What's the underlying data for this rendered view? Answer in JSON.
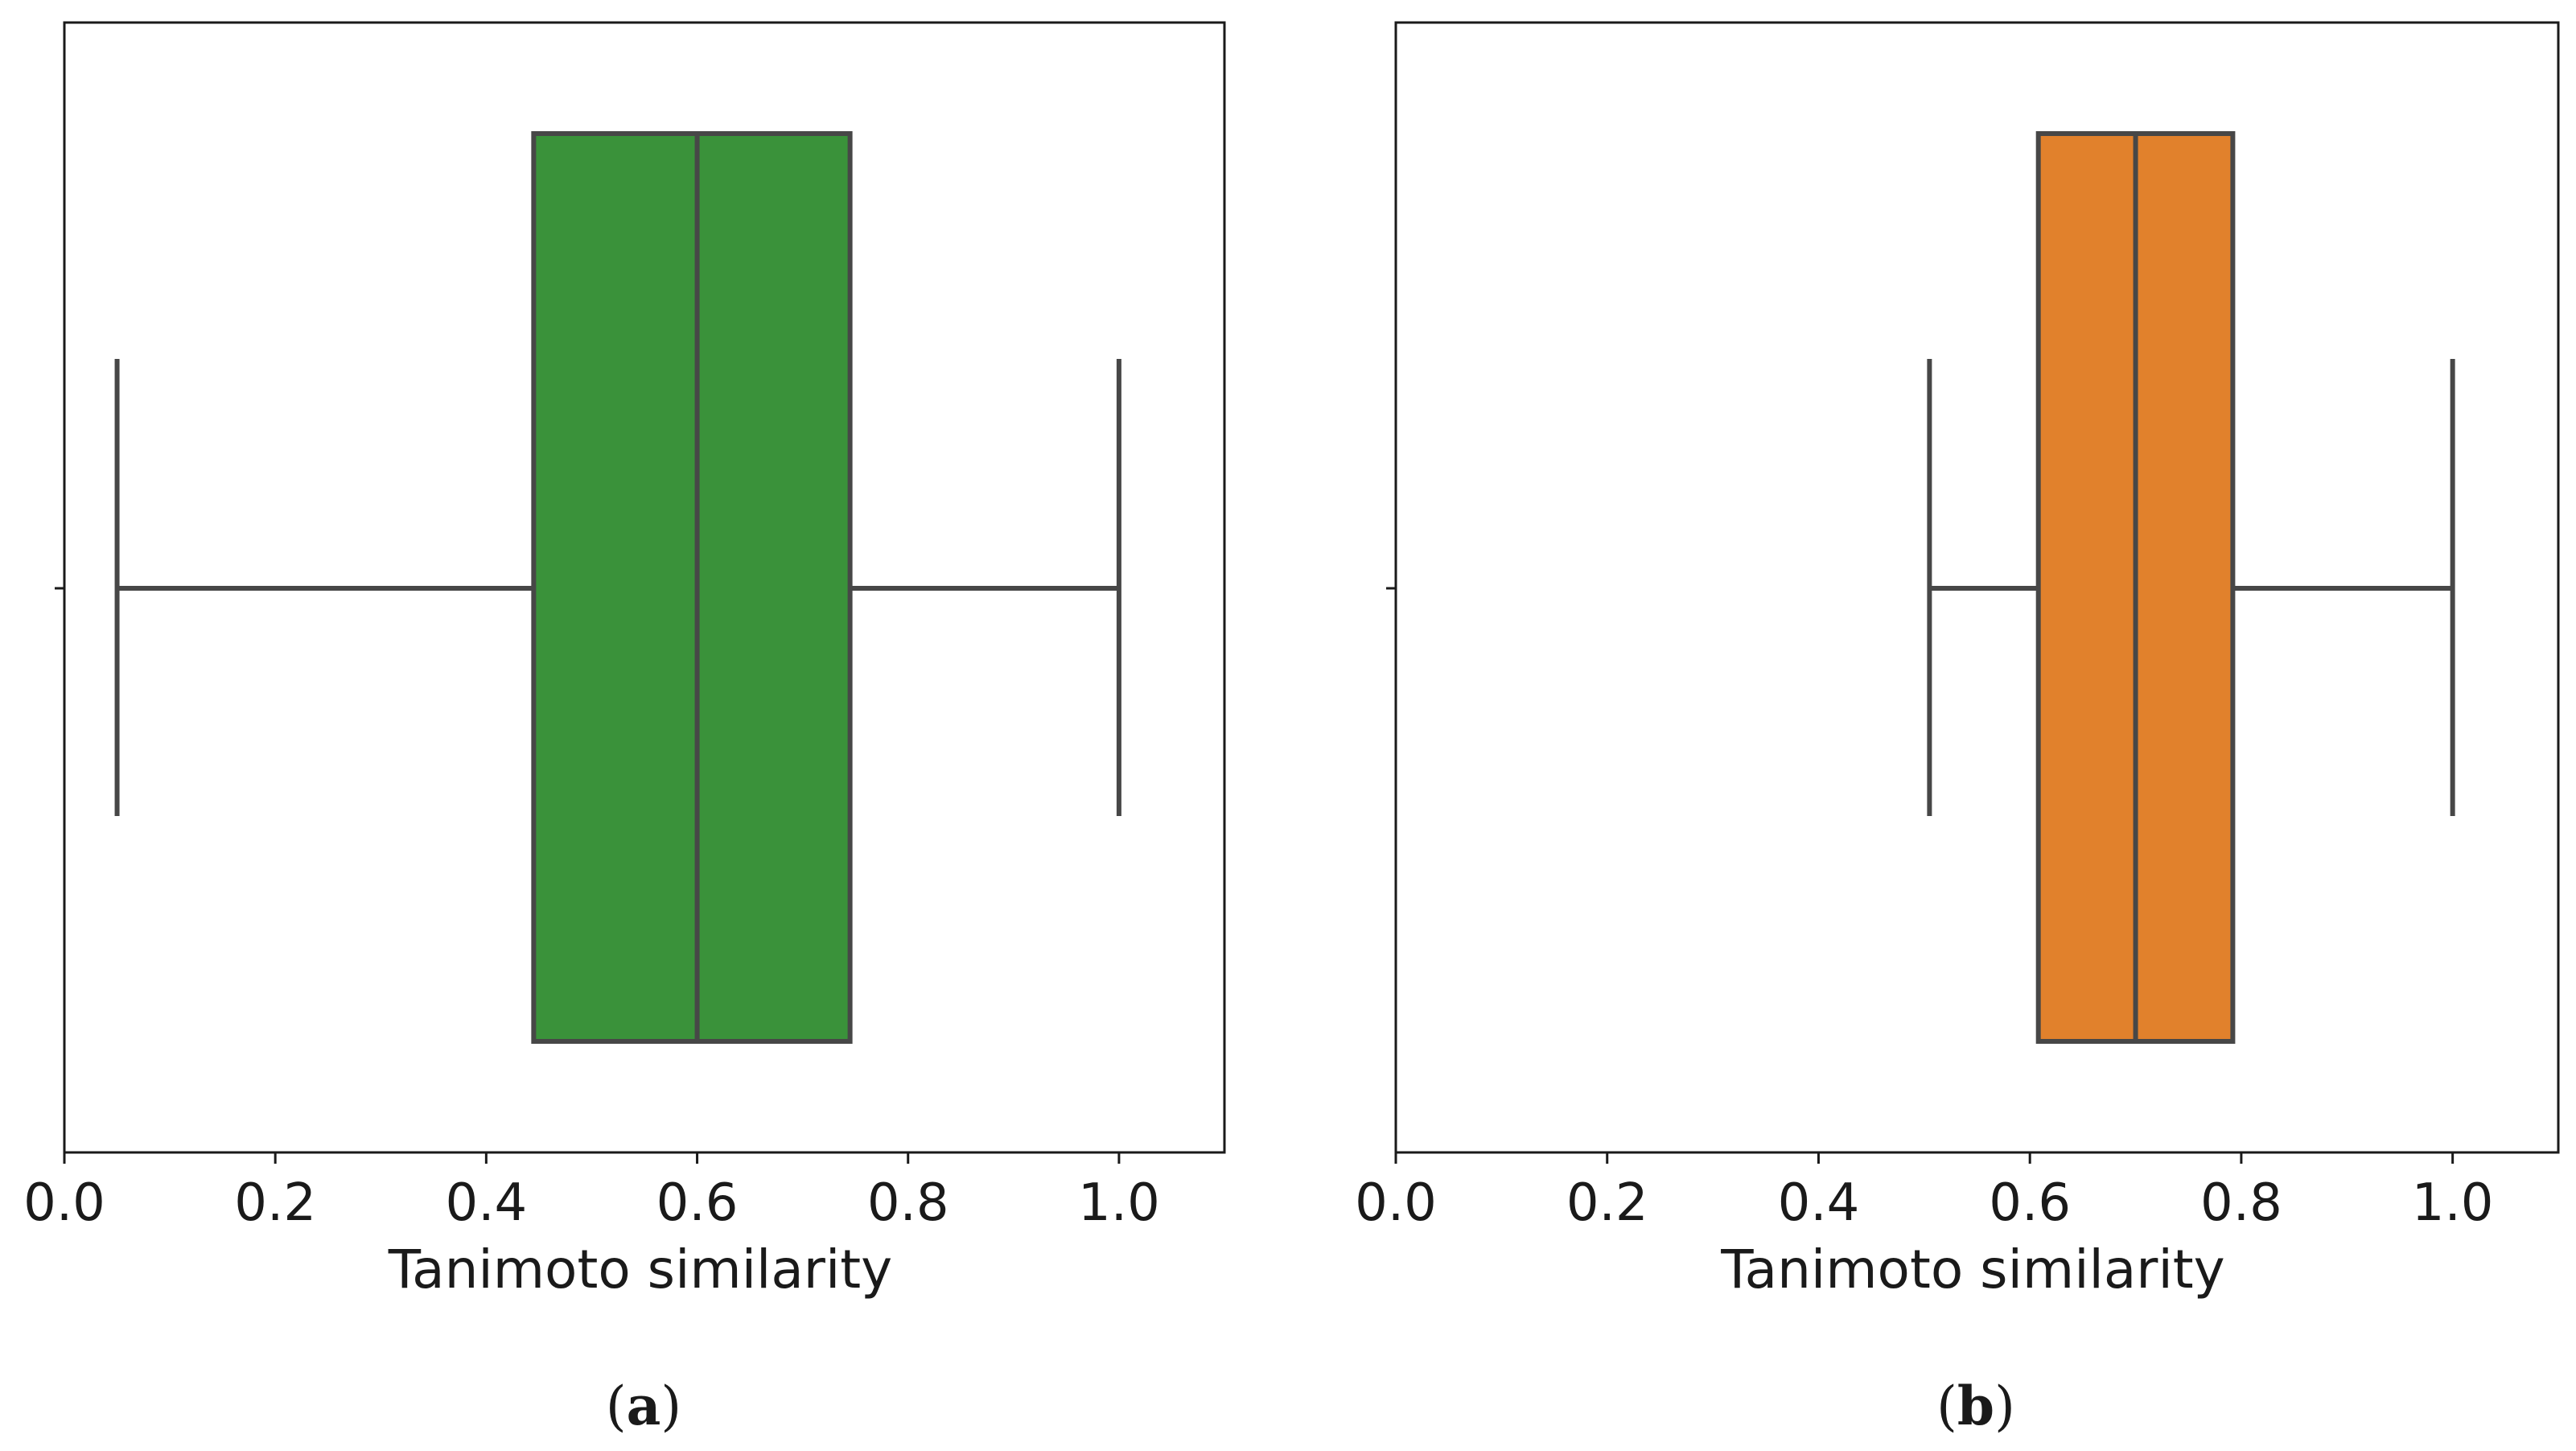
{
  "chart_data": [
    {
      "type": "box",
      "panel_label": "a",
      "xlabel": "Tanimoto similarity",
      "ylabel": "",
      "xlim": [
        0.0,
        1.1
      ],
      "xticks": [
        "0.0",
        "0.2",
        "0.4",
        "0.6",
        "0.8",
        "1.0"
      ],
      "xtick_values": [
        0.0,
        0.2,
        0.4,
        0.6,
        0.8,
        1.0
      ],
      "box": {
        "whisker_low": 0.05,
        "q1": 0.445,
        "median": 0.6,
        "q3": 0.745,
        "whisker_high": 1.0
      },
      "color": "#3a923a"
    },
    {
      "type": "box",
      "panel_label": "b",
      "xlabel": "Tanimoto similarity",
      "ylabel": "",
      "xlim": [
        0.0,
        1.1
      ],
      "xticks": [
        "0.0",
        "0.2",
        "0.4",
        "0.6",
        "0.8",
        "1.0"
      ],
      "xtick_values": [
        0.0,
        0.2,
        0.4,
        0.6,
        0.8,
        1.0
      ],
      "box": {
        "whisker_low": 0.505,
        "q1": 0.608,
        "median": 0.7,
        "q3": 0.792,
        "whisker_high": 1.0
      },
      "color": "#e1812c"
    }
  ],
  "captions": [
    {
      "open": "(",
      "letter": "a",
      "close": ")"
    },
    {
      "open": "(",
      "letter": "b",
      "close": ")"
    }
  ]
}
